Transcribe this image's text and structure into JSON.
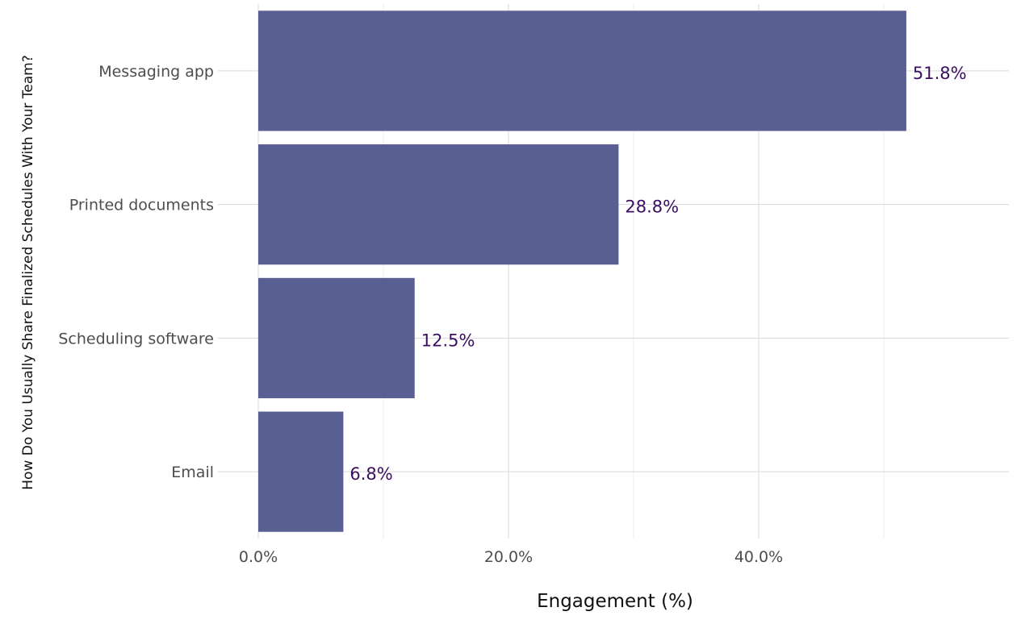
{
  "chart_data": {
    "type": "bar",
    "orientation": "horizontal",
    "categories": [
      "Messaging app",
      "Printed documents",
      "Scheduling software",
      "Email"
    ],
    "values": [
      51.8,
      28.8,
      12.5,
      6.8
    ],
    "data_labels": [
      "51.8%",
      "28.8%",
      "12.5%",
      "6.8%"
    ],
    "xlabel": "Engagement (%)",
    "ylabel": "How Do You Usually Share Finalized Schedules With Your Team?",
    "xlim": [
      0,
      60
    ],
    "x_ticks": [
      0,
      20,
      40
    ],
    "x_tick_labels": [
      "0.0%",
      "20.0%",
      "40.0%"
    ],
    "x_minor_ticks": [
      10,
      30,
      50
    ],
    "grid": true,
    "legend": "none",
    "colors": {
      "bar": "#5a5f93",
      "data_label": "#3b0f5f",
      "grid": "#d9d9d9",
      "grid_minor": "#eeeeee",
      "tick_text": "#4d4d4d"
    }
  }
}
